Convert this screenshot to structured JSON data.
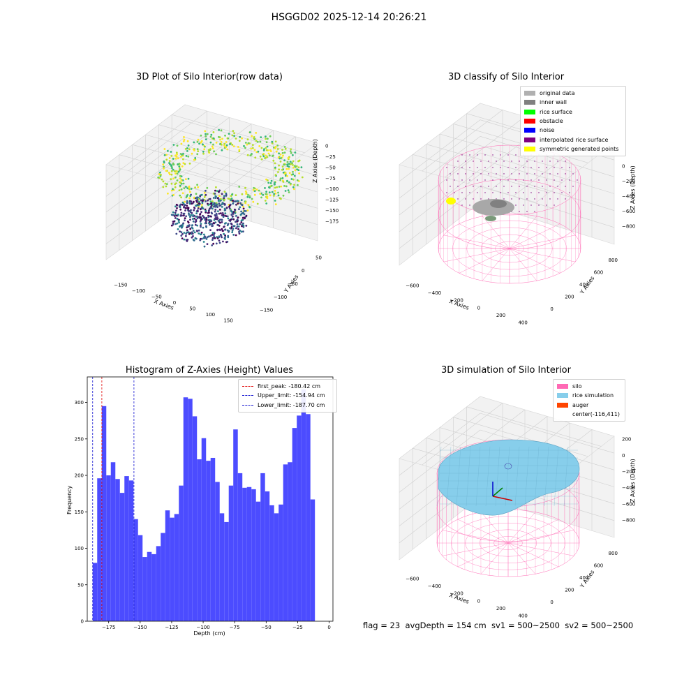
{
  "suptitle": "HSGGD02 2025-12-14 20:26:21",
  "bottom_text": "flag = 23  avgDepth = 154 cm  sv1 = 500~2500  sv2 = 500~2500",
  "colors": {
    "hist_bar": "#4c4cff",
    "red_line": "#e00000",
    "blue_line": "#1010d0",
    "silo_pink": "#ff69b4",
    "rice_blue": "#87ceeb",
    "auger": "#ff4500"
  },
  "chart_data": [
    {
      "type": "scatter",
      "title": "3D Plot of Silo Interior(row data)",
      "xlabel": "X Axies",
      "ylabel": "Y Axies",
      "zlabel": "Z Axies (Depth)",
      "x_ticks": [
        "−150",
        "−100",
        "−50",
        "0",
        "50",
        "100",
        "150"
      ],
      "y_ticks": [
        "50",
        "0",
        "−50",
        "−100",
        "−150"
      ],
      "z_ticks": [
        "0",
        "−25",
        "−50",
        "−75",
        "−100",
        "−125",
        "−150",
        "−175"
      ],
      "colormap": "viridis"
    },
    {
      "type": "scatter",
      "title": "3D classify of Silo Interior",
      "xlabel": "X Axies",
      "ylabel": "Y Axies",
      "zlabel": "Z Axies (Depth)",
      "x_ticks": [
        "−600",
        "−400",
        "−200",
        "0",
        "200",
        "400"
      ],
      "y_ticks": [
        "0",
        "200",
        "400",
        "600",
        "800"
      ],
      "z_ticks": [
        "0",
        "−200",
        "−400",
        "−600",
        "−800"
      ],
      "legend": [
        {
          "label": "original data",
          "color": "#b0b0b0"
        },
        {
          "label": "inner wall",
          "color": "#808080"
        },
        {
          "label": "rice surface",
          "color": "#00ff00"
        },
        {
          "label": "obstacle",
          "color": "#ff0000"
        },
        {
          "label": "noise",
          "color": "#0000ff"
        },
        {
          "label": "interpolated rice surface",
          "color": "#800080"
        },
        {
          "label": "symmetric generated points",
          "color": "#ffff00"
        }
      ]
    },
    {
      "type": "bar",
      "title": "Histogram of Z-Axies (Height) Values",
      "xlabel": "Depth (cm)",
      "ylabel": "Frequency",
      "xlim": [
        -192,
        3
      ],
      "ylim": [
        0,
        335
      ],
      "x_ticks": [
        -175,
        -150,
        -125,
        -100,
        -75,
        -50,
        -25,
        0
      ],
      "x_tick_labels": [
        "−175",
        "−150",
        "−125",
        "−100",
        "−75",
        "−50",
        "−25",
        "0"
      ],
      "y_ticks": [
        0,
        50,
        100,
        150,
        200,
        250,
        300
      ],
      "bin_start": -187.7,
      "bin_width": 3.6,
      "values": [
        80,
        196,
        295,
        200,
        218,
        195,
        176,
        199,
        193,
        140,
        118,
        88,
        95,
        92,
        103,
        121,
        152,
        142,
        147,
        186,
        307,
        305,
        281,
        222,
        251,
        220,
        224,
        191,
        148,
        136,
        186,
        263,
        203,
        183,
        184,
        181,
        164,
        203,
        178,
        159,
        148,
        160,
        215,
        218,
        265,
        282,
        318,
        284,
        167
      ],
      "lines": [
        {
          "label": "first_peak: -180.42 cm",
          "value": -180.42,
          "color": "#e00000"
        },
        {
          "label": "Upper_limit: -154.94 cm",
          "value": -154.94,
          "color": "#1010d0"
        },
        {
          "label": "Lower_limit: -187.70 cm",
          "value": -187.7,
          "color": "#1010d0"
        }
      ]
    },
    {
      "type": "scatter",
      "title": "3D simulation of Silo Interior",
      "xlabel": "X Axies",
      "ylabel": "Y Axies",
      "zlabel": "Z Axies (Depth)",
      "x_ticks": [
        "−600",
        "−400",
        "−200",
        "0",
        "200",
        "400"
      ],
      "y_ticks": [
        "0",
        "200",
        "400",
        "600",
        "800"
      ],
      "z_ticks": [
        "200",
        "0",
        "−200",
        "−400",
        "−600",
        "−800"
      ],
      "legend": [
        {
          "label": "silo",
          "color": "#ff69b4"
        },
        {
          "label": "rice simulation",
          "color": "#87ceeb"
        },
        {
          "label": "auger",
          "color": "#ff4500"
        },
        {
          "label": "center(-116,411)",
          "color": ""
        }
      ]
    }
  ]
}
